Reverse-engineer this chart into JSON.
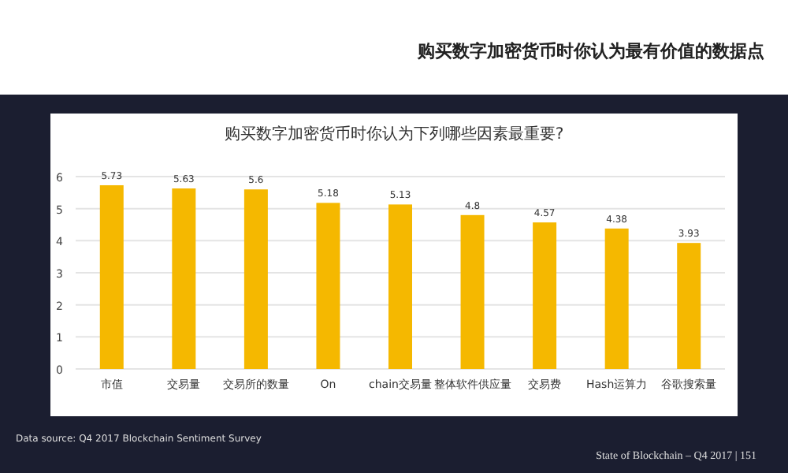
{
  "chart_data": {
    "type": "bar",
    "title": "购买数字加密货币时你认为下列哪些因素最重要?",
    "subtitle": "购买数字加密货币时你认为最有价值的数据点",
    "categories": [
      "市值",
      "交易量",
      "交易所的数量",
      "On",
      "chain交易量",
      "整体软件供应量",
      "交易费",
      "Hash运算力",
      "谷歌搜索量"
    ],
    "values": [
      5.73,
      5.63,
      5.6,
      5.18,
      5.13,
      4.8,
      4.57,
      4.38,
      3.93
    ],
    "color": "#f5b800",
    "ylim": [
      0,
      6
    ],
    "yticks": [
      0,
      1,
      2,
      3,
      4,
      5,
      6
    ],
    "grid": "y",
    "data_labels": true,
    "annotations": [
      "Data source: Q4 2017 Blockchain Sentiment Survey",
      "State of Blockchain – Q4 2017  |  151"
    ]
  }
}
